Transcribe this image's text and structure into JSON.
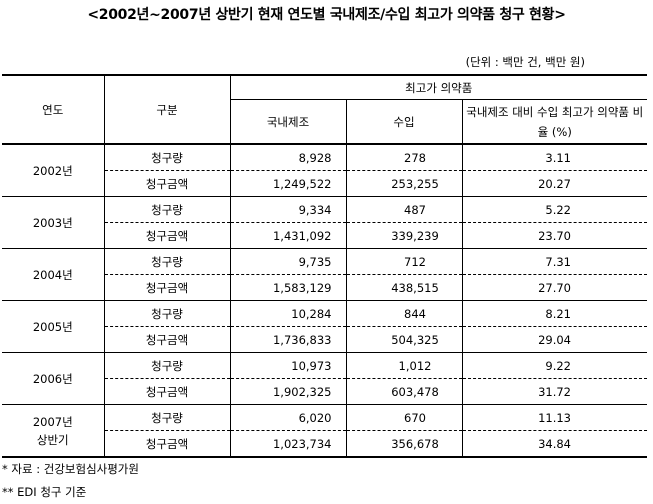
{
  "title": "<2002년~2007년 상반기 현재 연도별 국내제조/수입 최고가 의약품 청구 현황>",
  "unit": "(단위 : 백만 건, 백만 원)",
  "headers": {
    "year": "연도",
    "category": "구분",
    "group": "최고가 의약품",
    "domestic": "국내제조",
    "import": "수입",
    "ratio": "국내제조 대비 수입 최고가 의약품 비율 (%)"
  },
  "rows": [
    {
      "year": "2002년",
      "items": [
        {
          "label": "청구량",
          "domestic": "8,928",
          "import": "278",
          "ratio": "3.11"
        },
        {
          "label": "청구금액",
          "domestic": "1,249,522",
          "import": "253,255",
          "ratio": "20.27"
        }
      ]
    },
    {
      "year": "2003년",
      "items": [
        {
          "label": "청구량",
          "domestic": "9,334",
          "import": "487",
          "ratio": "5.22"
        },
        {
          "label": "청구금액",
          "domestic": "1,431,092",
          "import": "339,239",
          "ratio": "23.70"
        }
      ]
    },
    {
      "year": "2004년",
      "items": [
        {
          "label": "청구량",
          "domestic": "9,735",
          "import": "712",
          "ratio": "7.31"
        },
        {
          "label": "청구금액",
          "domestic": "1,583,129",
          "import": "438,515",
          "ratio": "27.70"
        }
      ]
    },
    {
      "year": "2005년",
      "items": [
        {
          "label": "청구량",
          "domestic": "10,284",
          "import": "844",
          "ratio": "8.21"
        },
        {
          "label": "청구금액",
          "domestic": "1,736,833",
          "import": "504,325",
          "ratio": "29.04"
        }
      ]
    },
    {
      "year": "2006년",
      "items": [
        {
          "label": "청구량",
          "domestic": "10,973",
          "import": "1,012",
          "ratio": "9.22"
        },
        {
          "label": "청구금액",
          "domestic": "1,902,325",
          "import": "603,478",
          "ratio": "31.72"
        }
      ]
    },
    {
      "year": "2007년 상반기",
      "items": [
        {
          "label": "청구량",
          "domestic": "6,020",
          "import": "670",
          "ratio": "11.13"
        },
        {
          "label": "청구금액",
          "domestic": "1,023,734",
          "import": "356,678",
          "ratio": "34.84"
        }
      ]
    }
  ],
  "notes": [
    "* 자료 : 건강보험심사평가원",
    "** EDI 청구 기준"
  ]
}
